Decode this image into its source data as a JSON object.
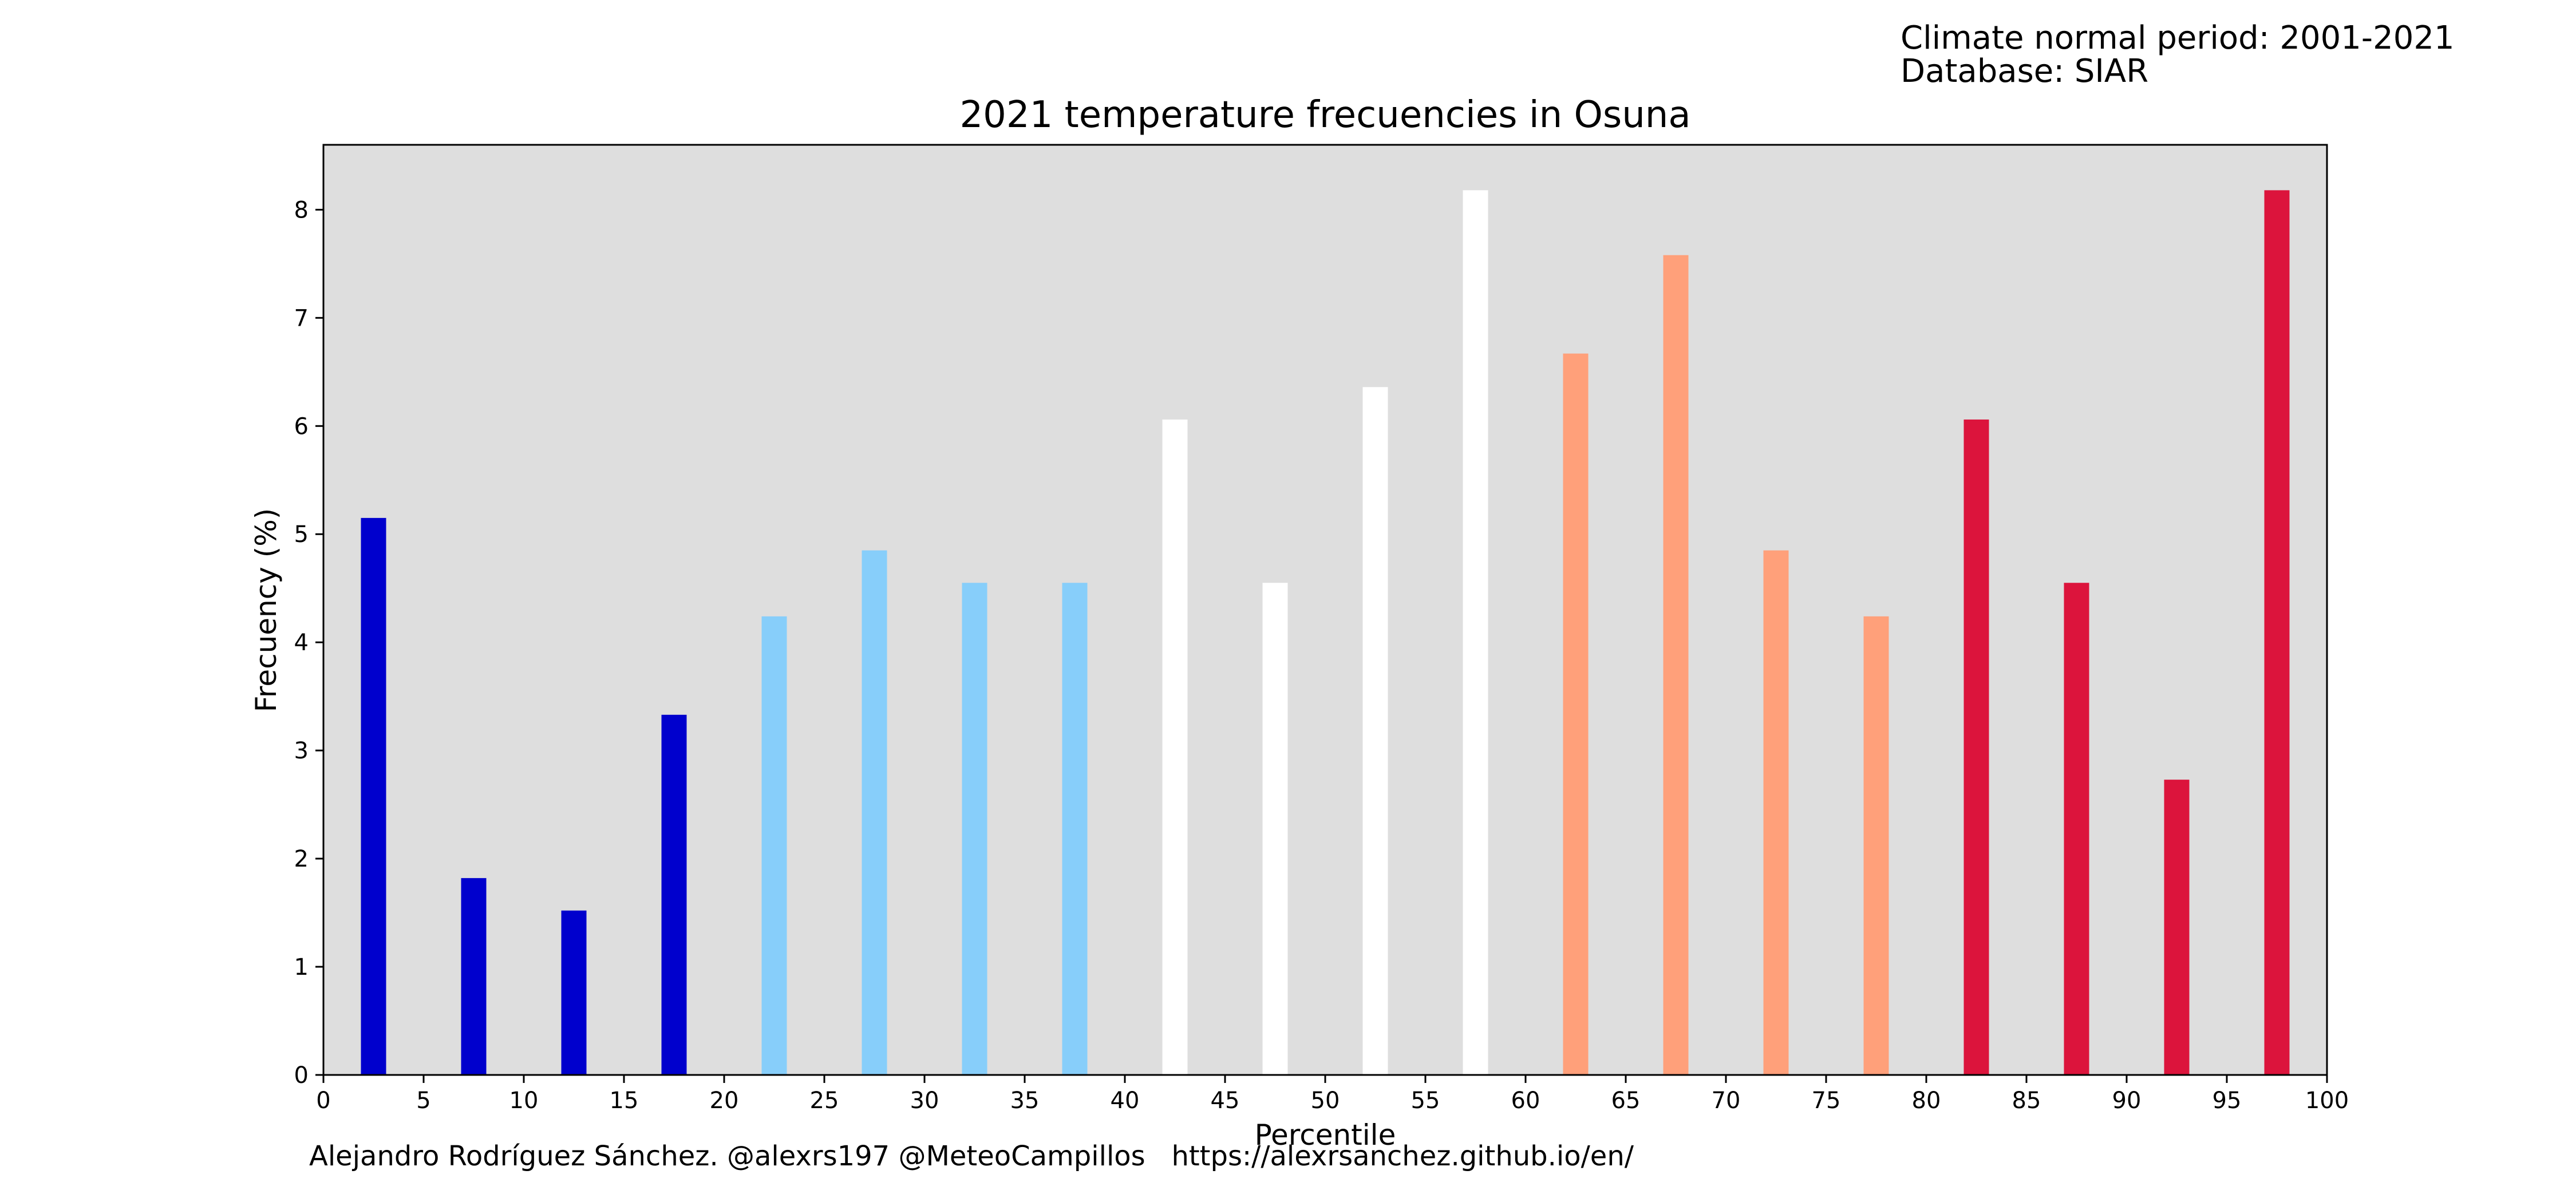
{
  "header": {
    "climate_period": "Climate normal period: 2001-2021",
    "database": "Database: SIAR"
  },
  "credit": {
    "author": "Alejandro Rodríguez Sánchez. @alexrs197 @MeteoCampillos",
    "url": "https://alexrsanchez.github.io/en/"
  },
  "chart_data": {
    "type": "bar",
    "title": "2021 temperature frecuencies in Osuna",
    "xlabel": "Percentile",
    "ylabel": "Frecuency (%)",
    "xlim": [
      0,
      100
    ],
    "ylim": [
      0,
      8.6
    ],
    "xticks": [
      "0",
      "5",
      "10",
      "15",
      "20",
      "25",
      "30",
      "35",
      "40",
      "45",
      "50",
      "55",
      "60",
      "65",
      "70",
      "75",
      "80",
      "85",
      "90",
      "95",
      "100"
    ],
    "yticks": [
      "0",
      "1",
      "2",
      "3",
      "4",
      "5",
      "6",
      "7",
      "8"
    ],
    "background": "#dedede",
    "grid": false,
    "x": [
      2.5,
      7.5,
      12.5,
      17.5,
      22.5,
      27.5,
      32.5,
      37.5,
      42.5,
      47.5,
      52.5,
      57.5,
      62.5,
      67.5,
      72.5,
      77.5,
      82.5,
      87.5,
      92.5,
      97.5
    ],
    "values": [
      5.15,
      1.82,
      1.52,
      3.33,
      4.24,
      4.85,
      4.55,
      4.55,
      6.06,
      4.55,
      6.36,
      8.18,
      6.67,
      7.58,
      4.85,
      4.24,
      6.06,
      4.55,
      2.73,
      8.18
    ],
    "colors": [
      "#0000cd",
      "#0000cd",
      "#0000cd",
      "#0000cd",
      "#87cefa",
      "#87cefa",
      "#87cefa",
      "#87cefa",
      "#ffffff",
      "#ffffff",
      "#ffffff",
      "#ffffff",
      "#ffa07a",
      "#ffa07a",
      "#ffa07a",
      "#ffa07a",
      "#dc143c",
      "#dc143c",
      "#dc143c",
      "#dc143c"
    ]
  }
}
